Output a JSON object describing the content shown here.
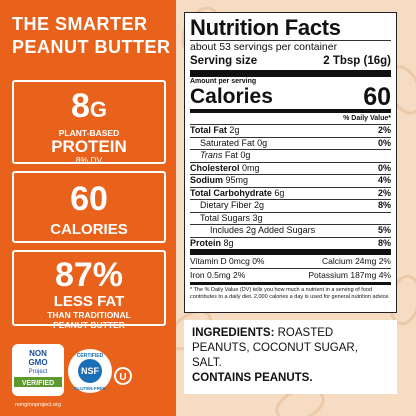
{
  "headline": [
    "THE SMARTER",
    "PEANUT BUTTER"
  ],
  "callouts": [
    {
      "value": "8",
      "unit": "G",
      "lines": [
        "PLANT-BASED",
        "PROTEIN",
        "8% DV"
      ]
    },
    {
      "value": "60",
      "lines": [
        "CALORIES"
      ]
    },
    {
      "value": "87%",
      "lines": [
        "LESS FAT",
        "THAN TRADITIONAL",
        "PEANUT BUTTER"
      ]
    }
  ],
  "nutrition": {
    "title": "Nutrition Facts",
    "servings": "about 53 servings per container",
    "serving_size_label": "Serving size",
    "serving_size": "2 Tbsp (16g)",
    "amount_per_serving": "Amount per serving",
    "calories_label": "Calories",
    "calories": "60",
    "dv_header": "% Daily Value*",
    "rows": [
      {
        "label": "Total Fat",
        "amount": "2g",
        "dv": "2%"
      },
      {
        "label": "Saturated Fat",
        "amount": "0g",
        "dv": "0%"
      },
      {
        "label_italic": "Trans",
        "label": "Fat",
        "amount": "0g"
      },
      {
        "label": "Cholesterol",
        "amount": "0mg",
        "dv": "0%"
      },
      {
        "label": "Sodium",
        "amount": "95mg",
        "dv": "4%"
      },
      {
        "label": "Total Carbohydrate",
        "amount": "6g",
        "dv": "2%"
      },
      {
        "label": "Dietary Fiber",
        "amount": "2g",
        "dv": "8%"
      },
      {
        "label": "Total Sugars",
        "amount": "3g"
      },
      {
        "label": "Includes 2g Added Sugars",
        "dv": "5%"
      },
      {
        "label": "Protein",
        "amount": "8g",
        "dv": "8%"
      }
    ],
    "micros": [
      [
        "Vitamin D 0mcg 0%",
        "Calcium 24mg 2%"
      ],
      [
        "Iron 0.5mg 2%",
        "Potassium 187mg 4%"
      ]
    ],
    "footnote": "* The % Daily Value (DV) tells you how much a nutrient in a serving of food contributes to a daily diet. 2,000 calories a day is used for general nutrition advice."
  },
  "ingredients": {
    "label": "INGREDIENTS:",
    "text": "ROASTED PEANUTS, COCONUT SUGAR, SALT.",
    "allergen": "CONTAINS PEANUTS."
  },
  "logos": {
    "non_gmo": [
      "NON",
      "GMO",
      "Project",
      "VERIFIED"
    ],
    "non_gmo_url": "nongmoproject.org",
    "nsf": [
      "CERTIFIED",
      "NSF",
      "GLUTEN-FREE"
    ],
    "ou": "U"
  }
}
